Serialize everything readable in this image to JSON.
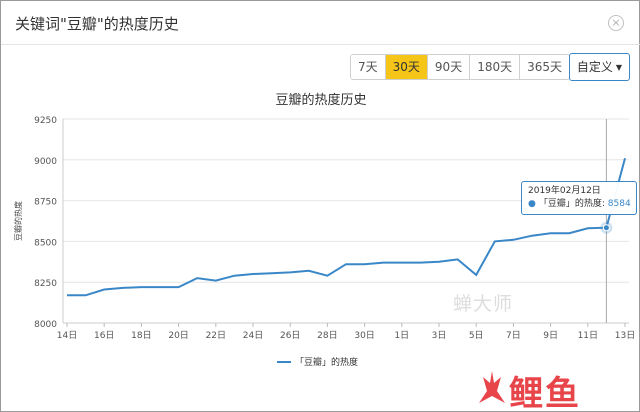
{
  "dialog": {
    "title": "关键词\"豆瓣\"的热度历史",
    "close_icon": "×"
  },
  "range_buttons": [
    {
      "label": "7天",
      "active": false
    },
    {
      "label": "30天",
      "active": true
    },
    {
      "label": "90天",
      "active": false
    },
    {
      "label": "180天",
      "active": false
    },
    {
      "label": "365天",
      "active": false
    }
  ],
  "custom_range": {
    "label": "自定义",
    "caret": "▼"
  },
  "tooltip": {
    "date": "2019年02月12日",
    "series_label": "「豆瓣」的热度:",
    "value": "8584",
    "dot": "●"
  },
  "watermark": "蝉大师",
  "brand": {
    "name": "鲤鱼",
    "fire_char": "火"
  },
  "colors": {
    "accent": "#3a87c8",
    "active_tab": "#f5c518",
    "brand_red": "#e8454a"
  },
  "chart_data": {
    "type": "line",
    "title": "豆瓣的热度历史",
    "ylabel": "豆瓣的热度",
    "xlabel": "",
    "ylim": [
      8000,
      9250
    ],
    "yticks": [
      8000,
      8250,
      8500,
      8750,
      9000,
      9250
    ],
    "x_tick_labels": [
      "14日",
      "16日",
      "18日",
      "20日",
      "22日",
      "24日",
      "26日",
      "28日",
      "30日",
      "1日",
      "3日",
      "5日",
      "7日",
      "9日",
      "11日",
      "13日"
    ],
    "legend_label": "「豆瓣」的热度",
    "legend_position": "bottom",
    "grid": true,
    "series": [
      {
        "name": "「豆瓣」的热度",
        "values": [
          8170,
          8170,
          8205,
          8215,
          8220,
          8220,
          8220,
          8275,
          8260,
          8290,
          8300,
          8305,
          8310,
          8320,
          8290,
          8360,
          8360,
          8370,
          8370,
          8370,
          8375,
          8390,
          8295,
          8500,
          8510,
          8535,
          8550,
          8550,
          8580,
          8584,
          9010
        ]
      }
    ]
  }
}
